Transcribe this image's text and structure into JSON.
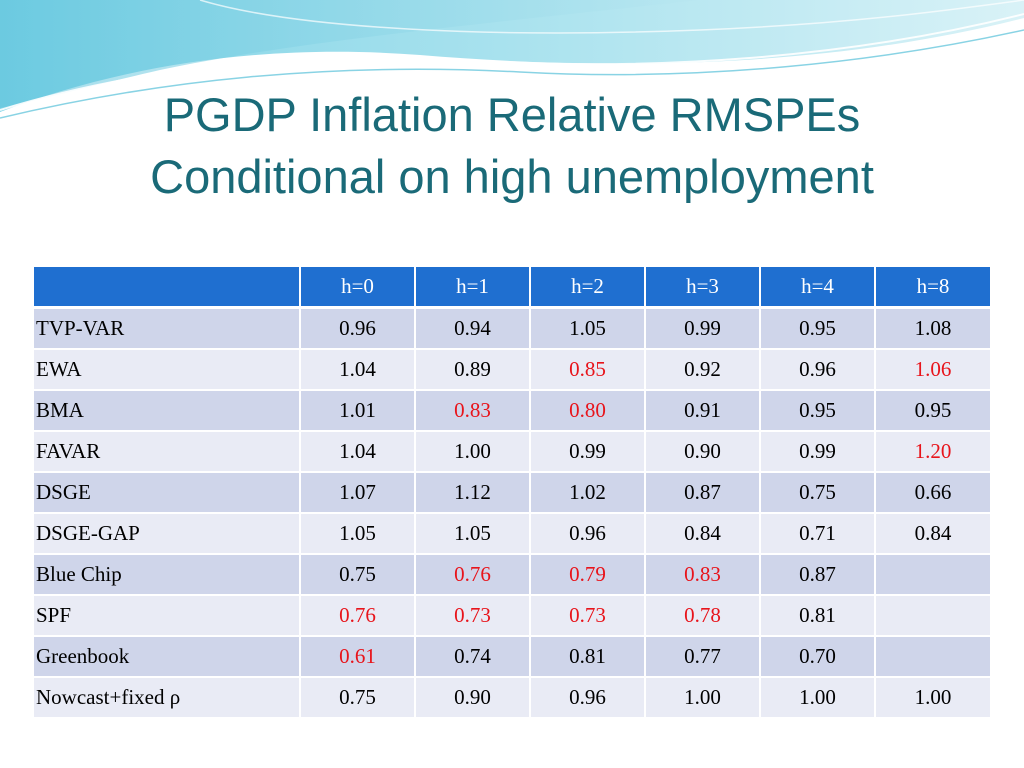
{
  "title": {
    "line1": "PGDP Inflation Relative RMSPEs",
    "line2": "Conditional on high unemployment"
  },
  "colors": {
    "title": "#1a6a78",
    "header_bg": "#1f6fd0",
    "row_odd": "#cfd5ea",
    "row_even": "#e9ebf5",
    "highlight": "#e8141b"
  },
  "table": {
    "header": [
      "",
      "h=0",
      "h=1",
      "h=2",
      "h=3",
      "h=4",
      "h=8"
    ],
    "rows": [
      {
        "model": "TVP-VAR",
        "cells": [
          {
            "v": "0.96",
            "red": false
          },
          {
            "v": "0.94",
            "red": false
          },
          {
            "v": "1.05",
            "red": false
          },
          {
            "v": "0.99",
            "red": false
          },
          {
            "v": "0.95",
            "red": false
          },
          {
            "v": "1.08",
            "red": false
          }
        ]
      },
      {
        "model": "EWA",
        "cells": [
          {
            "v": "1.04",
            "red": false
          },
          {
            "v": "0.89",
            "red": false
          },
          {
            "v": "0.85",
            "red": true
          },
          {
            "v": "0.92",
            "red": false
          },
          {
            "v": "0.96",
            "red": false
          },
          {
            "v": "1.06",
            "red": true
          }
        ]
      },
      {
        "model": "BMA",
        "cells": [
          {
            "v": "1.01",
            "red": false
          },
          {
            "v": "0.83",
            "red": true
          },
          {
            "v": "0.80",
            "red": true
          },
          {
            "v": "0.91",
            "red": false
          },
          {
            "v": "0.95",
            "red": false
          },
          {
            "v": "0.95",
            "red": false
          }
        ]
      },
      {
        "model": "FAVAR",
        "cells": [
          {
            "v": "1.04",
            "red": false
          },
          {
            "v": "1.00",
            "red": false
          },
          {
            "v": "0.99",
            "red": false
          },
          {
            "v": "0.90",
            "red": false
          },
          {
            "v": "0.99",
            "red": false
          },
          {
            "v": "1.20",
            "red": true
          }
        ]
      },
      {
        "model": "DSGE",
        "cells": [
          {
            "v": "1.07",
            "red": false
          },
          {
            "v": "1.12",
            "red": false
          },
          {
            "v": "1.02",
            "red": false
          },
          {
            "v": "0.87",
            "red": false
          },
          {
            "v": "0.75",
            "red": false
          },
          {
            "v": "0.66",
            "red": false
          }
        ]
      },
      {
        "model": "DSGE-GAP",
        "cells": [
          {
            "v": "1.05",
            "red": false
          },
          {
            "v": "1.05",
            "red": false
          },
          {
            "v": "0.96",
            "red": false
          },
          {
            "v": "0.84",
            "red": false
          },
          {
            "v": "0.71",
            "red": false
          },
          {
            "v": "0.84",
            "red": false
          }
        ]
      },
      {
        "model": "Blue Chip",
        "cells": [
          {
            "v": "0.75",
            "red": false
          },
          {
            "v": "0.76",
            "red": true
          },
          {
            "v": "0.79",
            "red": true
          },
          {
            "v": "0.83",
            "red": true
          },
          {
            "v": "0.87",
            "red": false
          },
          {
            "v": "",
            "red": false
          }
        ]
      },
      {
        "model": "SPF",
        "cells": [
          {
            "v": "0.76",
            "red": true
          },
          {
            "v": "0.73",
            "red": true
          },
          {
            "v": "0.73",
            "red": true
          },
          {
            "v": "0.78",
            "red": true
          },
          {
            "v": "0.81",
            "red": false
          },
          {
            "v": "",
            "red": false
          }
        ]
      },
      {
        "model": "Greenbook",
        "cells": [
          {
            "v": "0.61",
            "red": true
          },
          {
            "v": "0.74",
            "red": false
          },
          {
            "v": "0.81",
            "red": false
          },
          {
            "v": "0.77",
            "red": false
          },
          {
            "v": "0.70",
            "red": false
          },
          {
            "v": "",
            "red": false
          }
        ]
      },
      {
        "model": "Nowcast+fixed  ρ",
        "cells": [
          {
            "v": "0.75",
            "red": false
          },
          {
            "v": "0.90",
            "red": false
          },
          {
            "v": "0.96",
            "red": false
          },
          {
            "v": "1.00",
            "red": false
          },
          {
            "v": "1.00",
            "red": false
          },
          {
            "v": "1.00",
            "red": false
          }
        ]
      }
    ]
  }
}
